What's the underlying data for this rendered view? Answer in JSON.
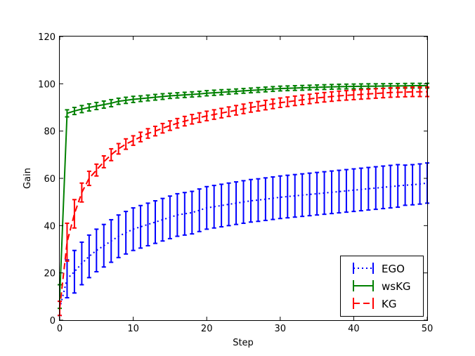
{
  "chart_data": {
    "type": "line",
    "xlabel": "Step",
    "ylabel": "Gain",
    "xlim": [
      0,
      50
    ],
    "ylim": [
      0,
      120
    ],
    "xticks": [
      0,
      10,
      20,
      30,
      40,
      50
    ],
    "yticks": [
      0,
      20,
      40,
      60,
      80,
      100,
      120
    ],
    "grid": false,
    "legend_position": "lower-right",
    "x": [
      0,
      1,
      2,
      3,
      4,
      5,
      6,
      7,
      8,
      9,
      10,
      11,
      12,
      13,
      14,
      15,
      16,
      17,
      18,
      19,
      20,
      21,
      22,
      23,
      24,
      25,
      26,
      27,
      28,
      29,
      30,
      31,
      32,
      33,
      34,
      35,
      36,
      37,
      38,
      39,
      40,
      41,
      42,
      43,
      44,
      45,
      46,
      47,
      48,
      49,
      50
    ],
    "series": [
      {
        "name": "EGO",
        "color": "#0000ff",
        "linestyle": "dotted",
        "values": [
          5,
          17.5,
          20.5,
          24,
          27,
          29.5,
          31.5,
          33.5,
          35.5,
          37,
          38.5,
          39.5,
          40.5,
          41.5,
          42.5,
          43.5,
          44.5,
          45,
          45.5,
          46.5,
          47.5,
          48,
          48.5,
          49,
          49.5,
          50,
          50.5,
          50.8,
          51.2,
          51.6,
          52,
          52.3,
          52.6,
          52.9,
          53.2,
          53.5,
          53.8,
          54.1,
          54.4,
          54.7,
          55,
          55.3,
          55.6,
          55.9,
          56.2,
          56.5,
          56.8,
          57.1,
          57.3,
          57.6,
          58
        ],
        "errors": [
          3,
          8,
          9,
          9,
          9,
          9,
          9,
          9,
          9,
          9,
          9,
          9,
          9,
          9,
          9,
          9,
          9,
          9,
          9,
          9,
          9,
          9,
          9,
          9,
          9,
          9,
          9,
          9,
          9,
          9,
          9,
          9,
          9,
          9,
          9,
          9,
          9,
          9,
          9,
          9,
          9,
          9,
          9,
          9,
          9,
          9,
          9,
          8.5,
          8.5,
          8.5,
          8.5
        ]
      },
      {
        "name": "wsKG",
        "color": "#008000",
        "linestyle": "solid",
        "values": [
          10,
          87.5,
          88.5,
          89.3,
          90,
          90.6,
          91.2,
          91.8,
          92.6,
          93,
          93.4,
          93.7,
          94,
          94.3,
          94.6,
          94.9,
          95.1,
          95.3,
          95.5,
          95.7,
          96,
          96.2,
          96.4,
          96.6,
          96.8,
          97,
          97.2,
          97.4,
          97.6,
          97.8,
          98,
          98.1,
          98.2,
          98.3,
          98.4,
          98.5,
          98.6,
          98.7,
          98.8,
          98.85,
          98.9,
          98.95,
          99,
          99,
          99.05,
          99.1,
          99.1,
          99.15,
          99.2,
          99.2,
          99.2
        ],
        "errors": [
          5,
          1.5,
          1.5,
          1.5,
          1.5,
          1.5,
          1.5,
          1.5,
          1.3,
          1.3,
          1.3,
          1.2,
          1.2,
          1.2,
          1.2,
          1.1,
          1.1,
          1.1,
          1.1,
          1.1,
          1.1,
          1.1,
          1.1,
          1,
          1,
          1,
          1,
          1,
          1,
          1,
          1,
          1,
          1,
          1,
          1,
          1,
          1,
          1,
          1,
          1,
          1,
          1,
          1,
          1,
          1,
          1,
          1,
          1,
          1,
          1,
          1
        ]
      },
      {
        "name": "KG",
        "color": "#ff0000",
        "linestyle": "dashed",
        "values": [
          5,
          33,
          45,
          54,
          60,
          63.5,
          67,
          70,
          72.5,
          74.5,
          76,
          77.5,
          79,
          80,
          81.2,
          82.3,
          83.3,
          84.2,
          85,
          85.7,
          86.4,
          87,
          87.6,
          88.2,
          88.8,
          89.4,
          90,
          90.5,
          91,
          91.5,
          92,
          92.4,
          92.8,
          93.2,
          93.6,
          94,
          94.3,
          94.6,
          94.9,
          95.1,
          95.3,
          95.5,
          95.7,
          95.9,
          96.1,
          96.3,
          96.4,
          96.5,
          96.6,
          96.6,
          96.6
        ],
        "errors": [
          3,
          8,
          6,
          4,
          3,
          2.5,
          2.5,
          2.5,
          2.2,
          2.2,
          2,
          2,
          2,
          2,
          2,
          2,
          2,
          2,
          2,
          2,
          2,
          2,
          2,
          2,
          2,
          2,
          2,
          2,
          2,
          2,
          2,
          2,
          2,
          2,
          2,
          2,
          2,
          2,
          2,
          2,
          2,
          2,
          2,
          2,
          2,
          2,
          2,
          2,
          2,
          2,
          2
        ]
      }
    ]
  }
}
